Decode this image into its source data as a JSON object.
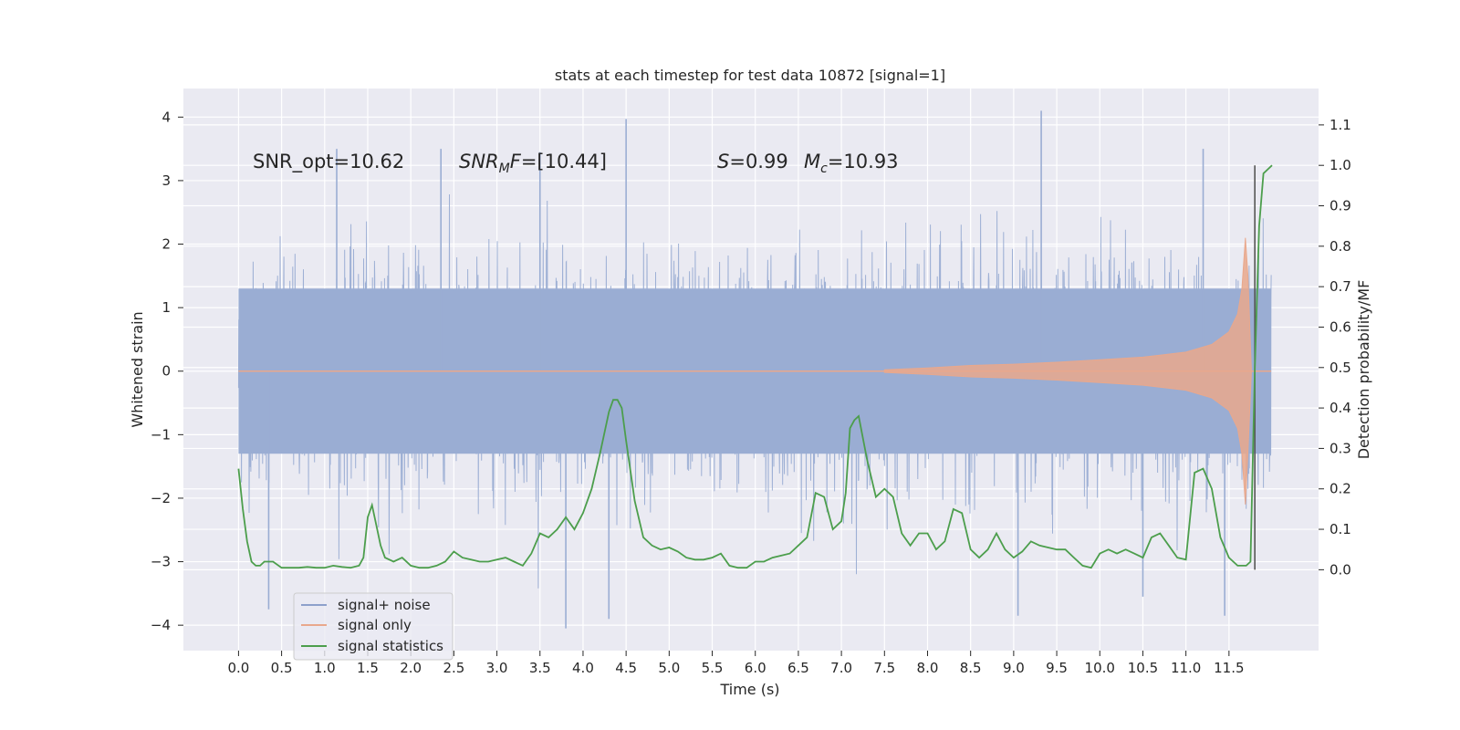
{
  "chart_data": {
    "type": "line",
    "title": "stats at each timestep for test data 10872 [signal=1]",
    "xlabel": "Time (s)",
    "ylabel": "Whitened strain",
    "ylabel_right": "Detection probability/MF",
    "xlim": [
      -0.64,
      12.54
    ],
    "ylim": [
      -4.4,
      4.45
    ],
    "ylim_right": [
      -0.2,
      1.19
    ],
    "x_ticks": [
      "0.0",
      "0.5",
      "1.0",
      "1.5",
      "2.0",
      "2.5",
      "3.0",
      "3.5",
      "4.0",
      "4.5",
      "5.0",
      "5.5",
      "6.0",
      "6.5",
      "7.0",
      "7.5",
      "8.0",
      "8.5",
      "9.0",
      "9.5",
      "10.0",
      "10.5",
      "11.0",
      "11.5"
    ],
    "y_ticks": [
      "4",
      "3",
      "2",
      "1",
      "0",
      "−1",
      "−2",
      "−3",
      "−4"
    ],
    "y_right_ticks": [
      "1.1",
      "1.0",
      "0.9",
      "0.8",
      "0.7",
      "0.6",
      "0.5",
      "0.4",
      "0.3",
      "0.2",
      "0.1",
      "0.0"
    ],
    "grid": true,
    "annotations": [
      {
        "id": "snr-opt",
        "text": "SNR_opt=10.62"
      },
      {
        "id": "snr-mf",
        "text": "=[10.44]",
        "math": "SNR_MF"
      },
      {
        "id": "stat-s",
        "text": "=0.99",
        "math": "S"
      },
      {
        "id": "chirp-mass",
        "text": "=10.93",
        "math": "M_c"
      }
    ],
    "legend": {
      "placement": "lower-left",
      "entries": [
        {
          "label": "signal+ noise",
          "color": "#8da0cb"
        },
        {
          "label": "signal only",
          "color": "#e9a88c"
        },
        {
          "label": "signal statistics",
          "color": "#4c9e4c"
        }
      ]
    },
    "series": [
      {
        "name": "signal+ noise",
        "axis": "left",
        "color": "#9aadd3",
        "t_range": [
          0.0,
          11.99
        ],
        "noise_core": 1.3,
        "envelope_typical_upper": 2.3,
        "envelope_typical_lower": -2.4,
        "peaks": [
          {
            "x": 1.14,
            "y": 3.5
          },
          {
            "x": 2.35,
            "y": 3.5
          },
          {
            "x": 3.5,
            "y": 3.45
          },
          {
            "x": 4.5,
            "y": 3.97
          },
          {
            "x": 9.32,
            "y": 4.1
          },
          {
            "x": 11.2,
            "y": 3.5
          },
          {
            "x": 0.35,
            "y": -3.75
          },
          {
            "x": 3.8,
            "y": -4.05
          },
          {
            "x": 4.3,
            "y": -3.9
          },
          {
            "x": 9.05,
            "y": -3.85
          },
          {
            "x": 10.5,
            "y": -3.55
          },
          {
            "x": 11.45,
            "y": -3.85
          }
        ]
      },
      {
        "name": "signal only",
        "axis": "left",
        "color": "#e9a88c",
        "envelope": [
          {
            "x": 7.5,
            "y": 0.02
          },
          {
            "x": 8.0,
            "y": 0.05
          },
          {
            "x": 8.5,
            "y": 0.09
          },
          {
            "x": 9.0,
            "y": 0.11
          },
          {
            "x": 9.5,
            "y": 0.14
          },
          {
            "x": 10.0,
            "y": 0.18
          },
          {
            "x": 10.5,
            "y": 0.22
          },
          {
            "x": 11.0,
            "y": 0.3
          },
          {
            "x": 11.3,
            "y": 0.42
          },
          {
            "x": 11.5,
            "y": 0.62
          },
          {
            "x": 11.6,
            "y": 0.9
          },
          {
            "x": 11.65,
            "y": 1.3
          },
          {
            "x": 11.69,
            "y": 2.1
          },
          {
            "x": 11.72,
            "y": 1.5
          },
          {
            "x": 11.76,
            "y": 0.0
          }
        ]
      },
      {
        "name": "signal statistics",
        "axis": "right",
        "color": "#4c9e4c",
        "x": [
          0.0,
          0.05,
          0.1,
          0.15,
          0.2,
          0.25,
          0.3,
          0.4,
          0.5,
          0.6,
          0.7,
          0.8,
          0.9,
          1.0,
          1.1,
          1.2,
          1.3,
          1.4,
          1.45,
          1.5,
          1.55,
          1.6,
          1.65,
          1.7,
          1.8,
          1.9,
          2.0,
          2.1,
          2.2,
          2.3,
          2.4,
          2.5,
          2.6,
          2.7,
          2.8,
          2.9,
          3.0,
          3.1,
          3.2,
          3.3,
          3.4,
          3.5,
          3.6,
          3.7,
          3.8,
          3.9,
          4.0,
          4.1,
          4.2,
          4.3,
          4.35,
          4.4,
          4.45,
          4.5,
          4.6,
          4.7,
          4.8,
          4.9,
          5.0,
          5.1,
          5.2,
          5.3,
          5.4,
          5.5,
          5.6,
          5.7,
          5.8,
          5.9,
          6.0,
          6.1,
          6.2,
          6.3,
          6.4,
          6.5,
          6.6,
          6.7,
          6.8,
          6.9,
          7.0,
          7.05,
          7.1,
          7.15,
          7.2,
          7.3,
          7.4,
          7.5,
          7.6,
          7.7,
          7.8,
          7.9,
          8.0,
          8.1,
          8.2,
          8.3,
          8.4,
          8.5,
          8.6,
          8.7,
          8.8,
          8.9,
          9.0,
          9.1,
          9.2,
          9.3,
          9.4,
          9.5,
          9.6,
          9.7,
          9.8,
          9.9,
          10.0,
          10.1,
          10.2,
          10.3,
          10.4,
          10.5,
          10.6,
          10.7,
          10.8,
          10.9,
          11.0,
          11.1,
          11.2,
          11.3,
          11.4,
          11.5,
          11.6,
          11.7,
          11.75,
          11.8,
          11.85,
          11.9,
          11.95,
          12.0
        ],
        "values": [
          0.25,
          0.15,
          0.07,
          0.02,
          0.01,
          0.01,
          0.02,
          0.02,
          0.005,
          0.005,
          0.005,
          0.007,
          0.005,
          0.005,
          0.01,
          0.007,
          0.005,
          0.01,
          0.03,
          0.13,
          0.16,
          0.11,
          0.06,
          0.03,
          0.02,
          0.03,
          0.01,
          0.005,
          0.005,
          0.01,
          0.02,
          0.045,
          0.03,
          0.025,
          0.02,
          0.02,
          0.025,
          0.03,
          0.02,
          0.01,
          0.04,
          0.09,
          0.08,
          0.1,
          0.13,
          0.1,
          0.14,
          0.2,
          0.29,
          0.39,
          0.42,
          0.42,
          0.4,
          0.32,
          0.17,
          0.08,
          0.06,
          0.05,
          0.055,
          0.045,
          0.03,
          0.025,
          0.025,
          0.03,
          0.04,
          0.01,
          0.005,
          0.005,
          0.02,
          0.02,
          0.03,
          0.035,
          0.04,
          0.06,
          0.08,
          0.19,
          0.18,
          0.1,
          0.12,
          0.19,
          0.35,
          0.37,
          0.38,
          0.27,
          0.18,
          0.2,
          0.18,
          0.09,
          0.06,
          0.09,
          0.09,
          0.05,
          0.07,
          0.15,
          0.14,
          0.05,
          0.03,
          0.05,
          0.09,
          0.05,
          0.03,
          0.045,
          0.07,
          0.06,
          0.055,
          0.05,
          0.05,
          0.03,
          0.01,
          0.005,
          0.04,
          0.05,
          0.04,
          0.05,
          0.04,
          0.03,
          0.08,
          0.09,
          0.06,
          0.03,
          0.025,
          0.24,
          0.25,
          0.2,
          0.08,
          0.03,
          0.01,
          0.01,
          0.02,
          0.5,
          0.85,
          0.98,
          0.99,
          1.0
        ]
      }
    ],
    "marker_line_x": 11.8
  }
}
